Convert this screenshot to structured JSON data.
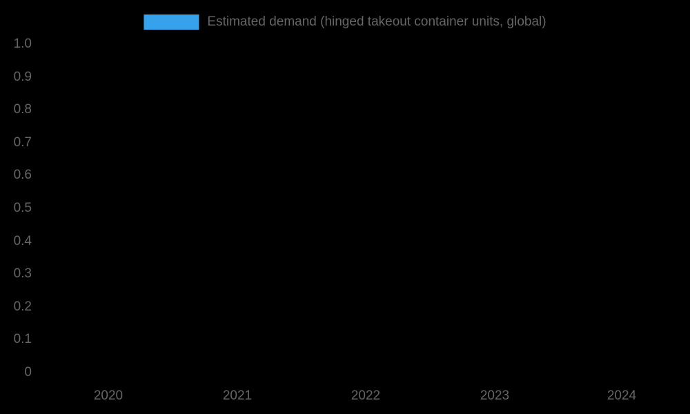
{
  "chart_data": {
    "type": "bar",
    "title": "",
    "legend": {
      "label": "Estimated demand (hinged takeout container units, global)",
      "swatch_color": "#36A2EB",
      "position": "top-center"
    },
    "categories": [
      "2020",
      "2021",
      "2022",
      "2023",
      "2024"
    ],
    "series": [
      {
        "name": "Estimated demand (hinged takeout container units, global)",
        "color": "#36A2EB",
        "values": [
          null,
          null,
          null,
          null,
          null
        ]
      }
    ],
    "y_axis": {
      "min": 0,
      "max": 1,
      "tick_step": 0.1,
      "tick_labels_top_to_bottom": [
        "1.0",
        "0.9",
        "0.8",
        "0.7",
        "0.6",
        "0.5",
        "0.4",
        "0.3",
        "0.2",
        "0.1",
        "0"
      ]
    },
    "x_axis": {
      "tick_labels": [
        "2020",
        "2021",
        "2022",
        "2023",
        "2024"
      ]
    },
    "grid": false,
    "axis_spines_visible": false,
    "plot_area_note": "no bars visible; plot region is empty black",
    "background_color": "#000000",
    "text_color": "#666666"
  }
}
